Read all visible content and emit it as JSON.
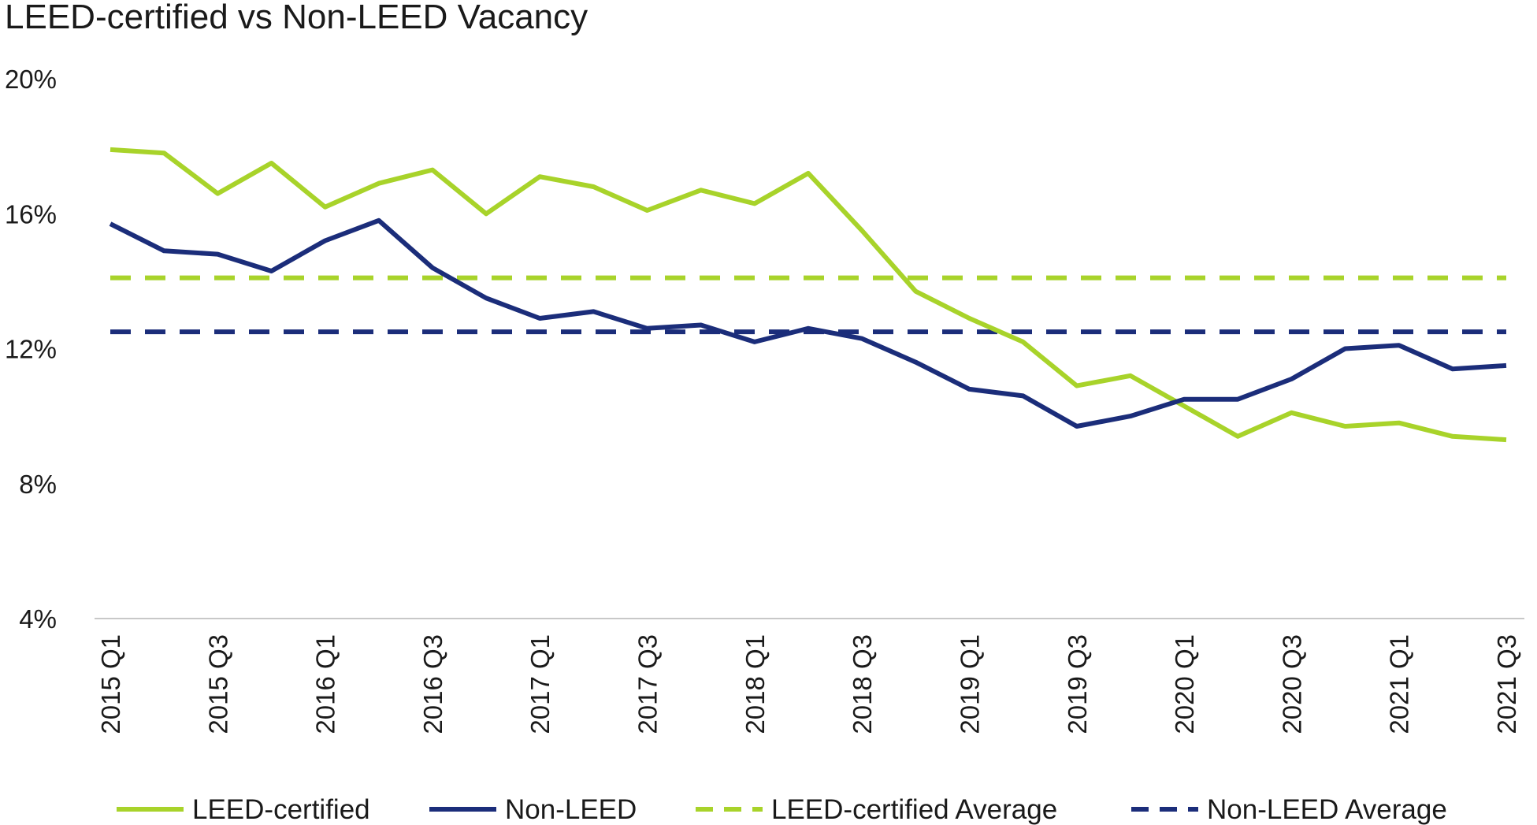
{
  "chart_data": {
    "type": "line",
    "title": "LEED-certified vs Non-LEED Vacancy",
    "xlabel": "",
    "ylabel": "",
    "ylim": [
      4,
      20
    ],
    "yticks": [
      "4%",
      "8%",
      "12%",
      "16%",
      "20%"
    ],
    "ytick_values": [
      4,
      8,
      12,
      16,
      20
    ],
    "categories": [
      "2015 Q1",
      "2015 Q2",
      "2015 Q3",
      "2015 Q4",
      "2016 Q1",
      "2016 Q2",
      "2016 Q3",
      "2016 Q4",
      "2017 Q1",
      "2017 Q2",
      "2017 Q3",
      "2017 Q4",
      "2018 Q1",
      "2018 Q2",
      "2018 Q3",
      "2018 Q4",
      "2019 Q1",
      "2019 Q2",
      "2019 Q3",
      "2019 Q4",
      "2020 Q1",
      "2020 Q2",
      "2020 Q3",
      "2020 Q4",
      "2021 Q1",
      "2021 Q2",
      "2021 Q3"
    ],
    "xtick_labels": [
      "2015 Q1",
      "",
      "2015 Q3",
      "",
      "2016 Q1",
      "",
      "2016 Q3",
      "",
      "2017 Q1",
      "",
      "2017 Q3",
      "",
      "2018 Q1",
      "",
      "2018 Q3",
      "",
      "2019 Q1",
      "",
      "2019 Q3",
      "",
      "2020 Q1",
      "",
      "2020 Q3",
      "",
      "2021 Q1",
      "",
      "2021 Q3"
    ],
    "grid": false,
    "legend_position": "bottom",
    "series": [
      {
        "name": "LEED-certified",
        "color": "#a8d32a",
        "style": "solid",
        "values": [
          17.9,
          17.8,
          16.6,
          17.5,
          16.2,
          16.9,
          17.3,
          16.0,
          17.1,
          16.8,
          16.1,
          16.7,
          16.3,
          17.2,
          15.5,
          13.7,
          12.9,
          12.2,
          10.9,
          11.2,
          10.3,
          9.4,
          10.1,
          9.7,
          9.8,
          9.4,
          9.3
        ]
      },
      {
        "name": "Non-LEED",
        "color": "#1b2d7a",
        "style": "solid",
        "values": [
          15.7,
          14.9,
          14.8,
          14.3,
          15.2,
          15.8,
          14.4,
          13.5,
          12.9,
          13.1,
          12.6,
          12.7,
          12.2,
          12.6,
          12.3,
          11.6,
          10.8,
          10.6,
          9.7,
          10.0,
          10.5,
          10.5,
          11.1,
          12.0,
          12.1,
          11.4,
          11.5
        ]
      },
      {
        "name": "LEED-certified Average",
        "color": "#a8d32a",
        "style": "dashed",
        "values": [
          14.1,
          14.1,
          14.1,
          14.1,
          14.1,
          14.1,
          14.1,
          14.1,
          14.1,
          14.1,
          14.1,
          14.1,
          14.1,
          14.1,
          14.1,
          14.1,
          14.1,
          14.1,
          14.1,
          14.1,
          14.1,
          14.1,
          14.1,
          14.1,
          14.1,
          14.1,
          14.1
        ]
      },
      {
        "name": "Non-LEED Average",
        "color": "#1b2d7a",
        "style": "dashed",
        "values": [
          12.5,
          12.5,
          12.5,
          12.5,
          12.5,
          12.5,
          12.5,
          12.5,
          12.5,
          12.5,
          12.5,
          12.5,
          12.5,
          12.5,
          12.5,
          12.5,
          12.5,
          12.5,
          12.5,
          12.5,
          12.5,
          12.5,
          12.5,
          12.5,
          12.5,
          12.5,
          12.5
        ]
      }
    ]
  }
}
